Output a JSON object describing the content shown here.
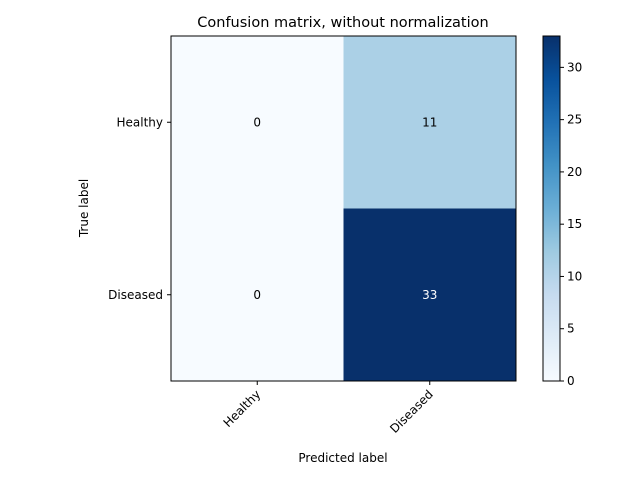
{
  "chart_data": {
    "type": "heatmap",
    "title": "Confusion matrix, without normalization",
    "xlabel": "Predicted label",
    "ylabel": "True label",
    "x_categories": [
      "Healthy",
      "Diseased"
    ],
    "y_categories": [
      "Healthy",
      "Diseased"
    ],
    "values": [
      [
        0,
        11
      ],
      [
        0,
        33
      ]
    ],
    "colormap": "Blues",
    "color_low": "#f7fbff",
    "color_high": "#08306b",
    "colorbar": {
      "range": [
        0,
        33
      ],
      "ticks": [
        0,
        5,
        10,
        15,
        20,
        25,
        30
      ]
    },
    "text_color_dark": "#000000",
    "text_color_light": "#ffffff"
  }
}
